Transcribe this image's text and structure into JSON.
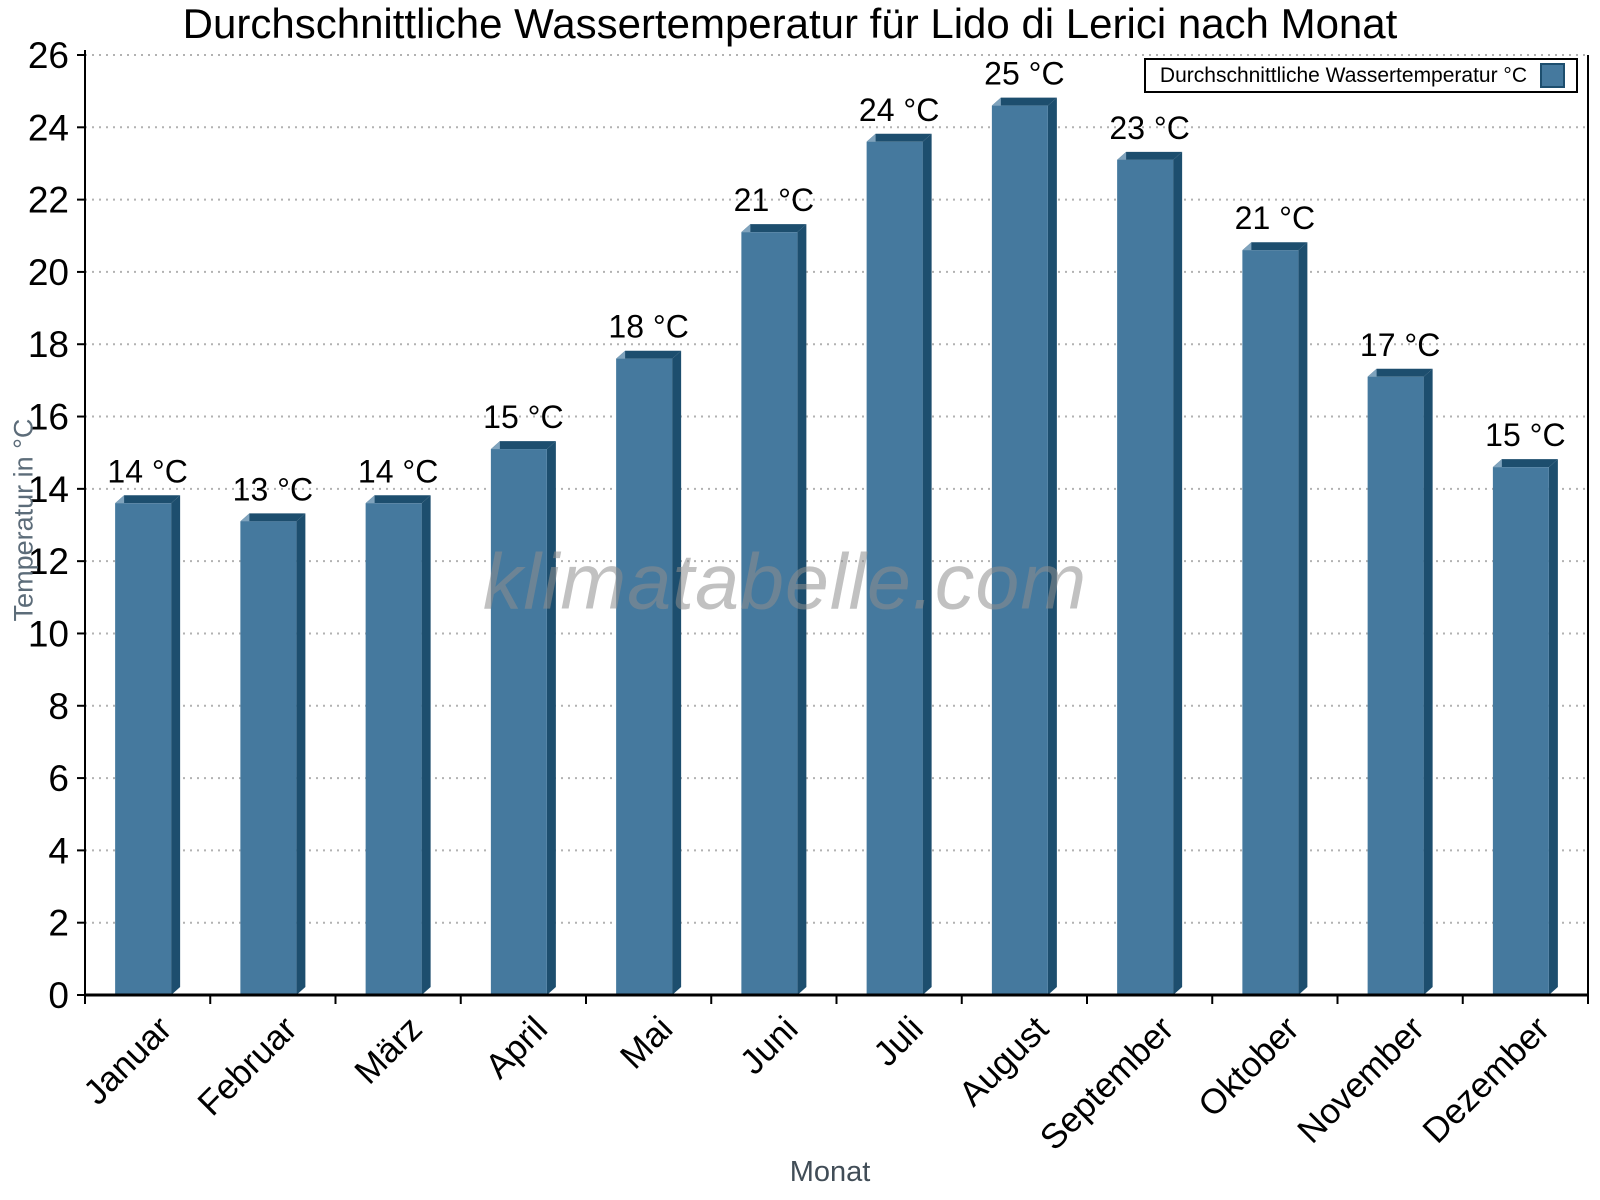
{
  "chart_data": {
    "type": "bar",
    "title": "Durchschnittliche Wassertemperatur für Lido di Lerici nach Monat",
    "xlabel": "Monat",
    "ylabel": "Temperatur in °C",
    "categories": [
      "Januar",
      "Februar",
      "März",
      "April",
      "Mai",
      "Juni",
      "Juli",
      "August",
      "September",
      "Oktober",
      "November",
      "Dezember"
    ],
    "values": [
      13.6,
      13.1,
      13.6,
      15.1,
      17.6,
      21.1,
      23.6,
      24.6,
      23.1,
      20.6,
      17.1,
      14.6
    ],
    "bar_labels": [
      "14 °C",
      "13 °C",
      "14 °C",
      "15 °C",
      "18 °C",
      "21 °C",
      "24 °C",
      "25 °C",
      "23 °C",
      "21 °C",
      "17 °C",
      "15 °C"
    ],
    "ylim": [
      0,
      26
    ],
    "ytick_step": 2,
    "ytick_labels": [
      "0",
      "2",
      "4",
      "6",
      "8",
      "10",
      "12",
      "14",
      "16",
      "18",
      "20",
      "22",
      "24",
      "26"
    ],
    "legend": {
      "label": "Durchschnittliche Wassertemperatur °C",
      "position": "top-right"
    },
    "watermark": "klimatabelle.com",
    "grid": "horizontal-dotted",
    "colors": {
      "bar_face": "#45799E",
      "bar_edge": "#1D4E6E",
      "bar_bevel": "#7FA3BD",
      "grid_line": "#b2b2b2",
      "axis": "#000000",
      "bar_label_text": "#000000",
      "tick_label_text": "#000000",
      "ylabel_text": "#5c6c79",
      "xlabel_text": "#414d57",
      "watermark_text": "#8e8e8e",
      "legend_border": "#000000",
      "legend_bg": "#ffffff"
    }
  }
}
